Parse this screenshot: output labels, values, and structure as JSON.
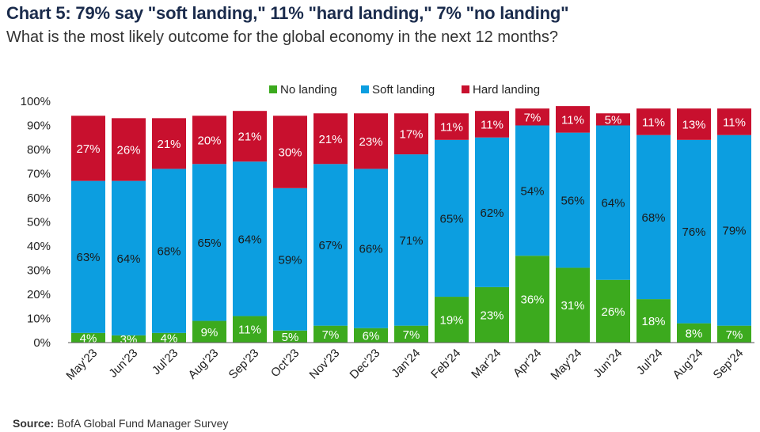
{
  "header": {
    "title": "Chart 5: 79% say \"soft landing,\" 11% \"hard landing,\" 7% \"no landing\"",
    "subtitle": "What is the most likely outcome for the global economy in the next 12 months?"
  },
  "footer": {
    "source_label": "Source:",
    "source_text": "BofA Global Fund Manager Survey"
  },
  "chart_data": {
    "type": "bar",
    "stacked": true,
    "title": "Chart 5: 79% say \"soft landing,\" 11% \"hard landing,\" 7% \"no landing\"",
    "subtitle": "What is the most likely outcome for the global economy in the next 12 months?",
    "xlabel": "",
    "ylabel": "",
    "ylim": [
      0,
      100
    ],
    "yticks": [
      "0%",
      "10%",
      "20%",
      "30%",
      "40%",
      "50%",
      "60%",
      "70%",
      "80%",
      "90%",
      "100%"
    ],
    "legend_position": "top",
    "grid": false,
    "categories": [
      "May'23",
      "Jun'23",
      "Jul'23",
      "Aug'23",
      "Sep'23",
      "Oct'23",
      "Nov'23",
      "Dec'23",
      "Jan'24",
      "Feb'24",
      "Mar'24",
      "Apr'24",
      "May'24",
      "Jun'24",
      "Jul'24",
      "Aug'24",
      "Sep'24"
    ],
    "series": [
      {
        "name": "No landing",
        "color": "#3caa1e",
        "values": [
          4,
          3,
          4,
          9,
          11,
          5,
          7,
          6,
          7,
          19,
          23,
          36,
          31,
          26,
          18,
          8,
          7
        ]
      },
      {
        "name": "Soft landing",
        "color": "#0c9ee0",
        "values": [
          63,
          64,
          68,
          65,
          64,
          59,
          67,
          66,
          71,
          65,
          62,
          54,
          56,
          64,
          68,
          76,
          79
        ]
      },
      {
        "name": "Hard landing",
        "color": "#c8102e",
        "values": [
          27,
          26,
          21,
          20,
          21,
          30,
          21,
          23,
          17,
          11,
          11,
          7,
          11,
          5,
          11,
          13,
          11
        ]
      }
    ]
  }
}
